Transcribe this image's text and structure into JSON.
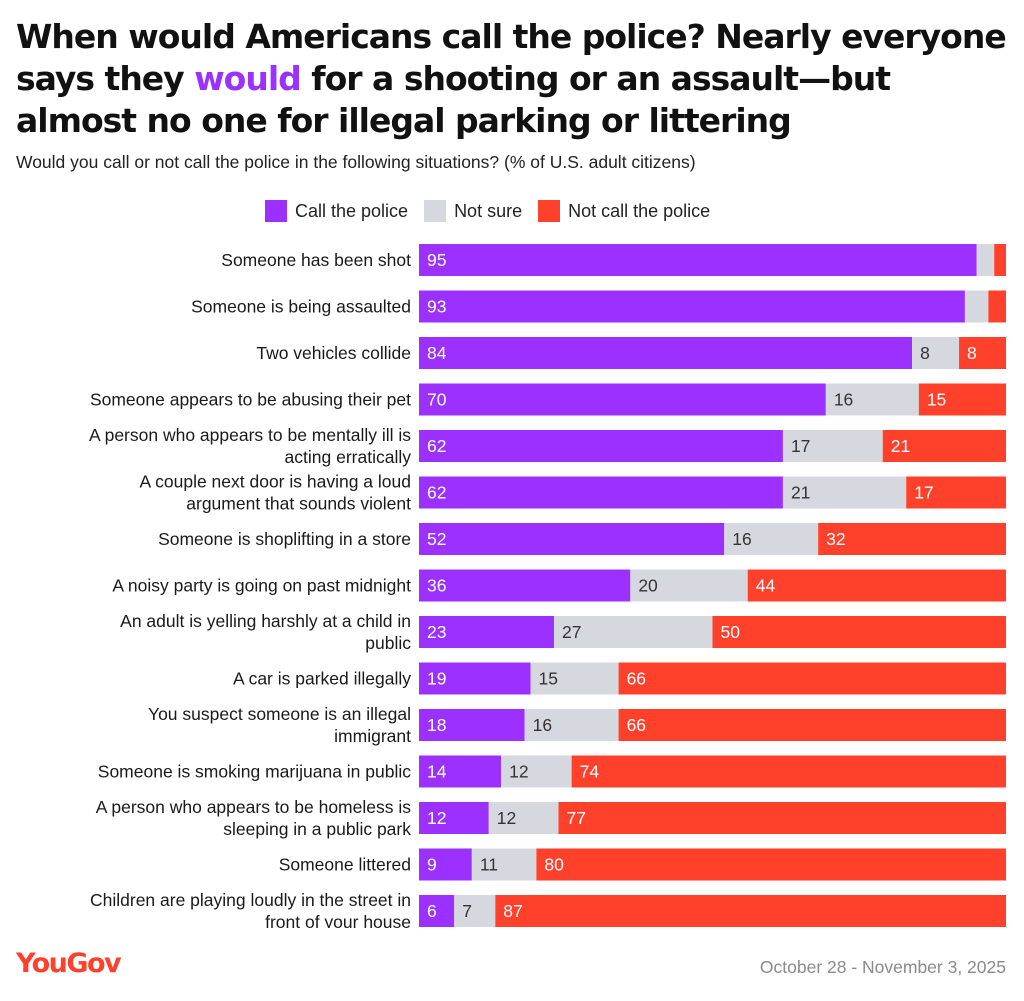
{
  "title": {
    "part1": "When would Americans call the police? Nearly everyone says they ",
    "highlight": "would",
    "part2": " for a shooting or an assault—but almost no one for illegal parking or littering"
  },
  "subtitle": "Would you call or not call the police in the following situations? (% of U.S. adult citizens)",
  "colors": {
    "call": "#9b30ff",
    "not_sure": "#d5d8de",
    "not_call": "#ff412c",
    "highlight": "#9b30ff"
  },
  "footer": {
    "logo": "YouGov",
    "date": "October 28 - November 3, 2025"
  },
  "chart_data": {
    "type": "bar",
    "orientation": "horizontal",
    "stacked": true,
    "xlim": [
      0,
      100
    ],
    "legend_position": "top",
    "categories": [
      "Someone has been shot",
      "Someone is being assaulted",
      "Two vehicles collide",
      "Someone appears to be abusing their pet",
      "A person who appears to be mentally ill is acting erratically",
      "A couple next door is having a loud argument that sounds violent",
      "Someone is shoplifting in a store",
      "A noisy party is going on past midnight",
      "An adult is yelling harshly at a child in public",
      "A car is parked illegally",
      "You suspect someone is an illegal immigrant",
      "Someone is smoking marijuana in public",
      "A person who appears to be homeless is sleeping in a public park",
      "Someone littered",
      "Children are playing loudly in the street in front of your house"
    ],
    "category_lines": [
      [
        "Someone has been shot"
      ],
      [
        "Someone is being assaulted"
      ],
      [
        "Two vehicles collide"
      ],
      [
        "Someone appears to be abusing their pet"
      ],
      [
        "A person who appears to be mentally ill is",
        "acting erratically"
      ],
      [
        "A couple next door is having a loud",
        "argument that sounds violent"
      ],
      [
        "Someone is shoplifting in a store"
      ],
      [
        "A noisy party is going on past midnight"
      ],
      [
        "An adult is yelling harshly at a child in",
        "public"
      ],
      [
        "A car is parked illegally"
      ],
      [
        "You suspect someone is an illegal",
        "immigrant"
      ],
      [
        "Someone is smoking marijuana in public"
      ],
      [
        "A person who appears to be homeless is",
        "sleeping in a public park"
      ],
      [
        "Someone littered"
      ],
      [
        "Children are playing loudly in the street in",
        "front of your house"
      ]
    ],
    "series": [
      {
        "name": "Call the police",
        "values": [
          95,
          93,
          84,
          70,
          62,
          62,
          52,
          36,
          23,
          19,
          18,
          14,
          12,
          9,
          6
        ]
      },
      {
        "name": "Not sure",
        "values": [
          3,
          4,
          8,
          16,
          17,
          21,
          16,
          20,
          27,
          15,
          16,
          12,
          12,
          11,
          7
        ]
      },
      {
        "name": "Not call the police",
        "values": [
          2,
          3,
          8,
          15,
          21,
          17,
          32,
          44,
          50,
          66,
          66,
          74,
          77,
          80,
          87
        ]
      }
    ],
    "labels_shown": [
      [
        true,
        false,
        false
      ],
      [
        true,
        false,
        false
      ],
      [
        true,
        true,
        true
      ],
      [
        true,
        true,
        true
      ],
      [
        true,
        true,
        true
      ],
      [
        true,
        true,
        true
      ],
      [
        true,
        true,
        true
      ],
      [
        true,
        true,
        true
      ],
      [
        true,
        true,
        true
      ],
      [
        true,
        true,
        true
      ],
      [
        true,
        true,
        true
      ],
      [
        true,
        true,
        true
      ],
      [
        true,
        true,
        true
      ],
      [
        true,
        true,
        true
      ],
      [
        true,
        true,
        true
      ]
    ]
  }
}
